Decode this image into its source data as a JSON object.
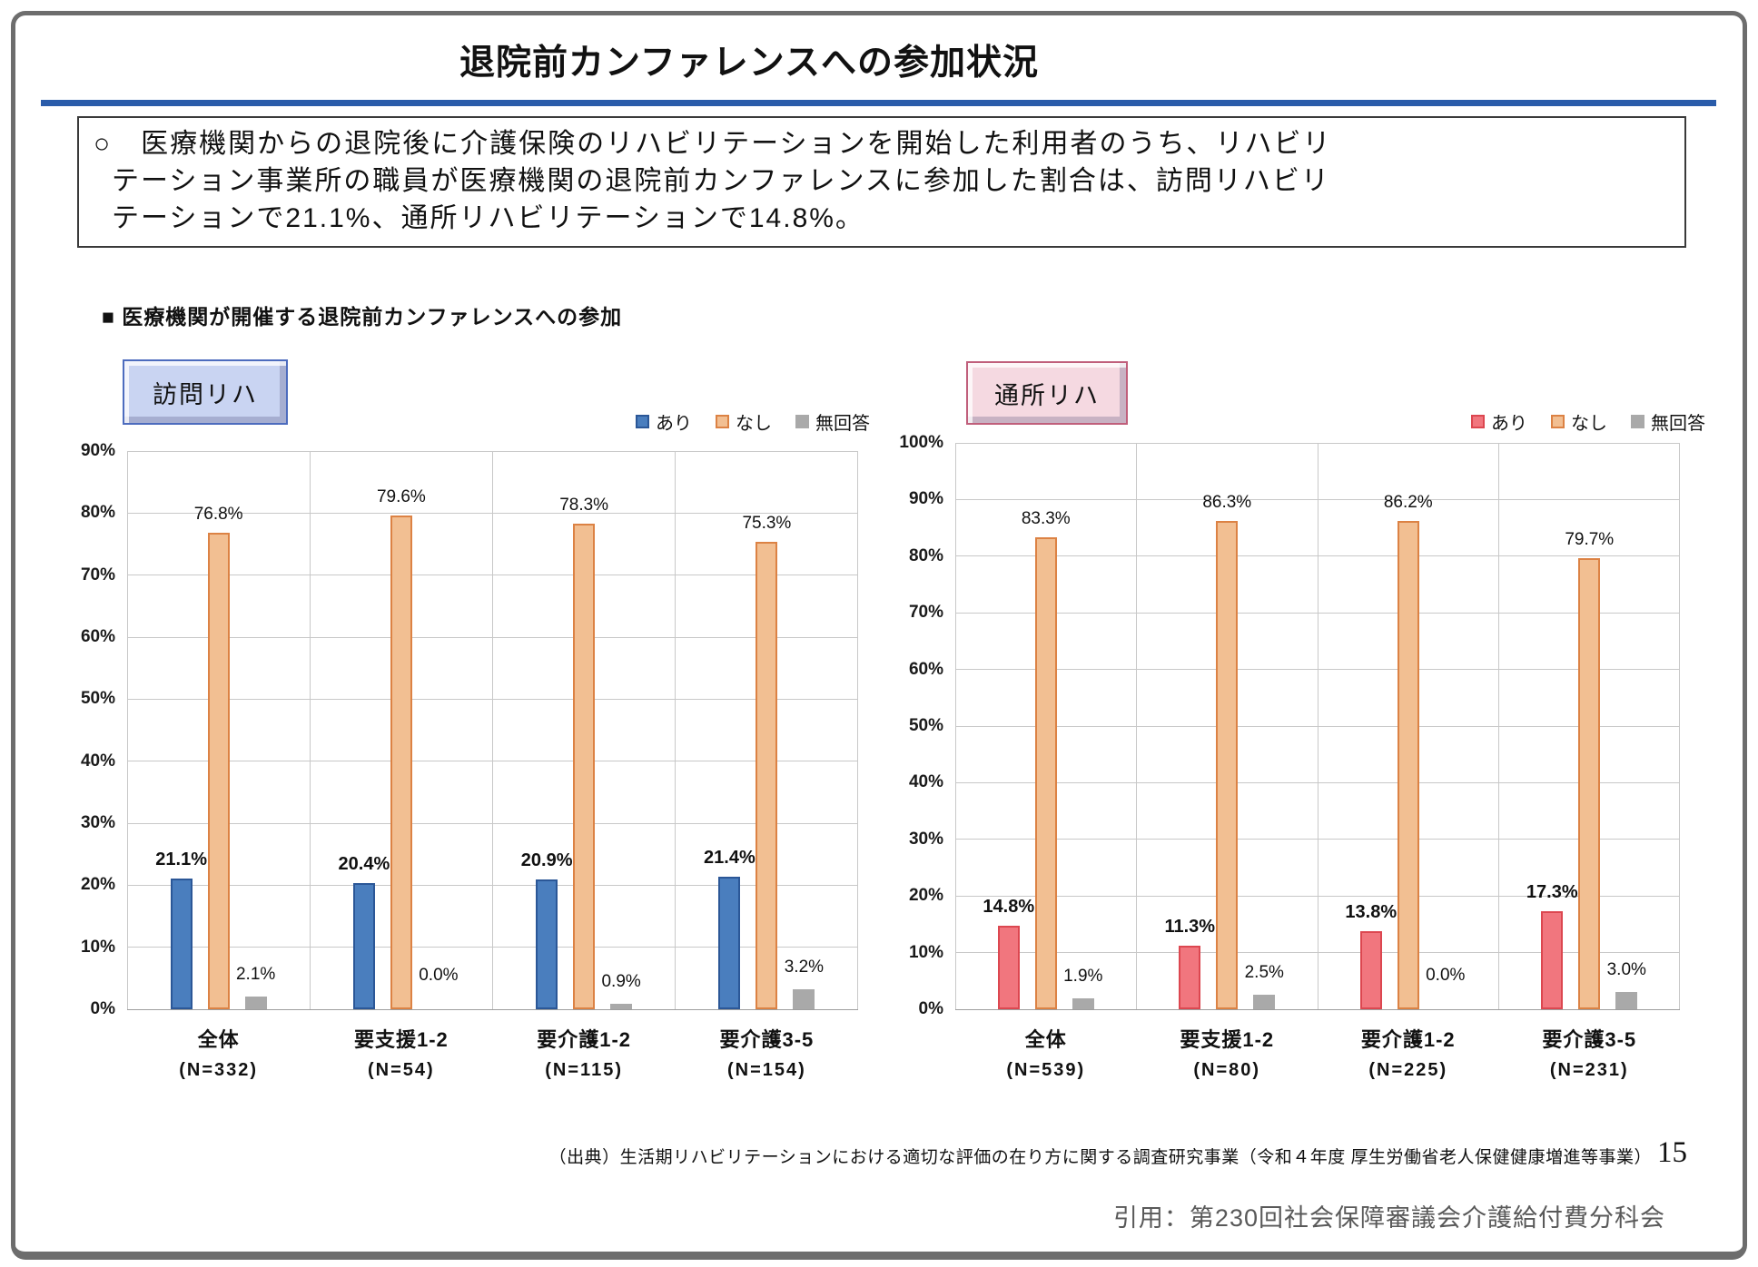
{
  "page": {
    "title": "退院前カンファレンスへの参加状況",
    "accent_rule_color": "#2a5caa",
    "summary": {
      "lines": [
        "○　医療機関からの退院後に介護保険のリハビリテーションを開始した利用者のうち、リハビリ",
        "テーション事業所の職員が医療機関の退院前カンファレンスに参加した割合は、訪問リハビリ",
        "テーションで21.1%、通所リハビリテーションで14.8%。"
      ]
    },
    "section_heading": "■ 医療機関が開催する退院前カンファレンスへの参加",
    "footer": {
      "source_text": "（出典）生活期リハビリテーションにおける適切な評価の在り方に関する調査研究事業（令和４年度 厚生労働省老人保健健康増進等事業）",
      "page_number": "15",
      "citation": "引用：第230回社会保障審議会介護給付費分科会"
    }
  },
  "chart_data": [
    {
      "type": "bar",
      "title": "訪問リハ",
      "title_style": {
        "fill": "#c9d4f2",
        "border": "#4d6cbe"
      },
      "categories": [
        "全体",
        "要支援1-2",
        "要介護1-2",
        "要介護3-5"
      ],
      "category_n": [
        "(N=332)",
        "(N=54)",
        "(N=115)",
        "(N=154)"
      ],
      "series": [
        {
          "name": "あり",
          "values": [
            21.1,
            20.4,
            20.9,
            21.4
          ],
          "fill": "#4a7ebe",
          "border": "#2b5797",
          "label_bold": true
        },
        {
          "name": "なし",
          "values": [
            76.8,
            79.6,
            78.3,
            75.3
          ],
          "fill": "#f2bf92",
          "border": "#dc8244",
          "label_bold": false
        },
        {
          "name": "無回答",
          "values": [
            2.1,
            0.0,
            0.9,
            3.2
          ],
          "fill": "#a9a9a9",
          "border": "#a9a9a9",
          "label_bold": false
        }
      ],
      "ylim": [
        0,
        90
      ],
      "ytick_step": 10,
      "grid": true,
      "legend_position": "top-right"
    },
    {
      "type": "bar",
      "title": "通所リハ",
      "title_style": {
        "fill": "#f5d9e1",
        "border": "#c05f7b"
      },
      "categories": [
        "全体",
        "要支援1-2",
        "要介護1-2",
        "要介護3-5"
      ],
      "category_n": [
        "(N=539)",
        "(N=80)",
        "(N=225)",
        "(N=231)"
      ],
      "series": [
        {
          "name": "あり",
          "values": [
            14.8,
            11.3,
            13.8,
            17.3
          ],
          "fill": "#f1767e",
          "border": "#dc4750",
          "label_bold": true
        },
        {
          "name": "なし",
          "values": [
            83.3,
            86.3,
            86.2,
            79.7
          ],
          "fill": "#f2bf92",
          "border": "#dc8244",
          "label_bold": false
        },
        {
          "name": "無回答",
          "values": [
            1.9,
            2.5,
            0.0,
            3.0
          ],
          "fill": "#a9a9a9",
          "border": "#a9a9a9",
          "label_bold": false
        }
      ],
      "ylim": [
        0,
        100
      ],
      "ytick_step": 10,
      "grid": true,
      "legend_position": "top-right"
    }
  ]
}
